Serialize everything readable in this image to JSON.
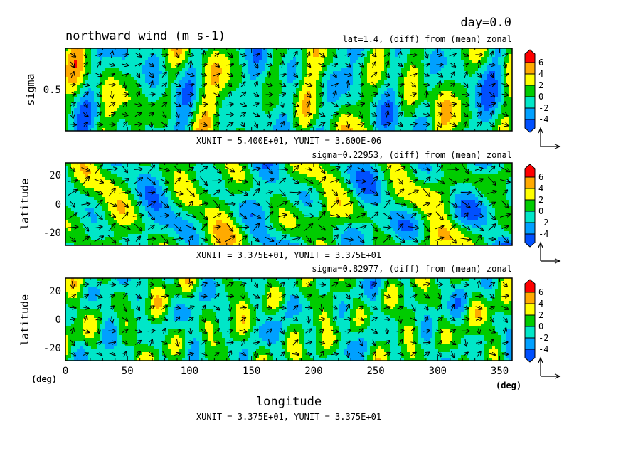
{
  "header": {
    "time_label": "day=0.0",
    "title": "northward wind (m s-1)"
  },
  "panels": [
    {
      "subtitle": "lat=1.4, (diff) from (mean) zonal",
      "ylabel": "sigma",
      "yticks": [
        "0.5"
      ],
      "units": "XUNIT = 5.400E+01, YUNIT = 3.600E-06"
    },
    {
      "subtitle": "sigma=0.22953, (diff) from (mean) zonal",
      "ylabel": "latitude",
      "yticks": [
        "20",
        "0",
        "-20"
      ],
      "units": "XUNIT = 3.375E+01, YUNIT = 3.375E+01"
    },
    {
      "subtitle": "sigma=0.82977, (diff) from (mean) zonal",
      "ylabel": "latitude",
      "yticks": [
        "20",
        "0",
        "-20"
      ],
      "units": "XUNIT = 3.375E+01, YUNIT = 3.375E+01"
    }
  ],
  "xaxis": {
    "label": "longitude",
    "ticks": [
      "0",
      "50",
      "100",
      "150",
      "200",
      "250",
      "300",
      "350"
    ],
    "unit_left": "(deg)",
    "unit_right": "(deg)"
  },
  "colorbar": {
    "labels": [
      "6",
      "4",
      "2",
      "0",
      "-2",
      "-4"
    ],
    "colors": [
      "#0050ff",
      "#00a0ff",
      "#00e6c8",
      "#00cc00",
      "#ffff00",
      "#ffaa00",
      "#ff0000"
    ]
  },
  "chart_data": {
    "type": "heatmap",
    "title": "northward wind (m s-1)",
    "xlabel": "longitude",
    "x_unit": "(deg)",
    "xlim": [
      0,
      360
    ],
    "color_levels": [
      -4,
      -2,
      0,
      2,
      4,
      6
    ],
    "colors": [
      "#0050ff",
      "#00a0ff",
      "#00e6c8",
      "#00cc00",
      "#ffff00",
      "#ffaa00",
      "#ff0000"
    ],
    "panels": [
      {
        "subtitle": "lat=1.4, (diff) from (mean) zonal",
        "ylabel": "sigma",
        "y_ticks": [
          0.5
        ],
        "ylim": [
          0,
          1
        ]
      },
      {
        "subtitle": "sigma=0.22953, (diff) from (mean) zonal",
        "ylabel": "latitude",
        "y_ticks": [
          -20,
          0,
          20
        ],
        "ylim": [
          -30,
          30
        ]
      },
      {
        "subtitle": "sigma=0.82977, (diff) from (mean) zonal",
        "ylabel": "latitude",
        "y_ticks": [
          -20,
          0,
          20
        ],
        "ylim": [
          -30,
          30
        ]
      }
    ]
  }
}
